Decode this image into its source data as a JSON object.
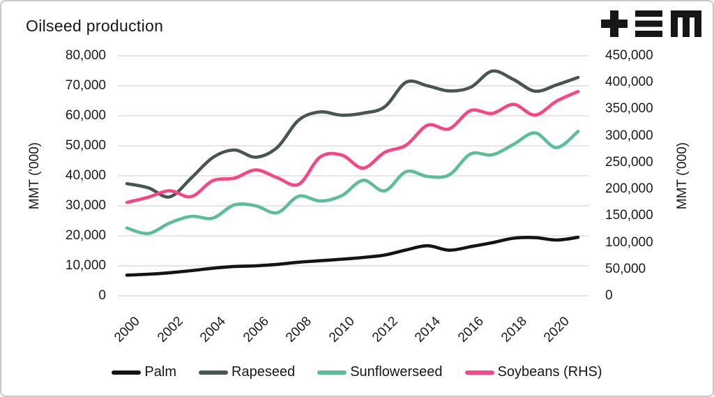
{
  "header": {
    "title": "Oilseed production"
  },
  "logo": {
    "label": "+≡M monogram",
    "color": "#161616"
  },
  "colors": {
    "text": "#1a1a1a",
    "gridline": "#d8d8d8",
    "border": "#c9c9c9",
    "palm": "#141414",
    "rapeseed": "#485551",
    "sunflowerseed": "#5abf99",
    "soybeans": "#f74585"
  },
  "chart_data": {
    "type": "line",
    "title": "Oilseed production",
    "grid": "horizontal",
    "legend_position": "bottom",
    "x": [
      2000,
      2001,
      2002,
      2003,
      2004,
      2005,
      2006,
      2007,
      2008,
      2009,
      2010,
      2011,
      2012,
      2013,
      2014,
      2015,
      2016,
      2017,
      2018,
      2019,
      2020,
      2021
    ],
    "x_tick_years": [
      2000,
      2002,
      2004,
      2006,
      2008,
      2010,
      2012,
      2014,
      2016,
      2018,
      2020
    ],
    "x_tick_labels": [
      "2000",
      "2002",
      "2004",
      "2006",
      "2008",
      "2010",
      "2012",
      "2014",
      "2016",
      "2018",
      "2020"
    ],
    "axes": {
      "left": {
        "label": "MMT ('000)",
        "lim": [
          0,
          80000
        ],
        "ticks": [
          "80,000",
          "70,000",
          "60,000",
          "50,000",
          "40,000",
          "30,000",
          "20,000",
          "10,000",
          "0"
        ]
      },
      "right": {
        "label": "MMT ('000)",
        "lim": [
          0,
          450000
        ],
        "ticks": [
          "450,000",
          "400,000",
          "350,000",
          "300,000",
          "250,000",
          "200,000",
          "150,000",
          "100,000",
          "50,000",
          "0"
        ]
      }
    },
    "series": [
      {
        "name": "Palm",
        "axis": "left",
        "color": "#141414",
        "values": [
          6900,
          7200,
          7700,
          8400,
          9200,
          9800,
          10000,
          10500,
          11200,
          11700,
          12200,
          12800,
          13600,
          15300,
          16700,
          15200,
          16400,
          17700,
          19200,
          19400,
          18600,
          19500
        ]
      },
      {
        "name": "Rapeseed",
        "axis": "left",
        "color": "#485551",
        "values": [
          37400,
          36000,
          33000,
          39300,
          46100,
          48600,
          46200,
          49500,
          58600,
          61300,
          60200,
          60900,
          63000,
          71200,
          70000,
          68300,
          69500,
          74900,
          72100,
          68200,
          70300,
          72800
        ]
      },
      {
        "name": "Sunflowerseed",
        "axis": "left",
        "color": "#5abf99",
        "values": [
          22600,
          20800,
          24300,
          26500,
          25900,
          30300,
          30000,
          27700,
          33200,
          31600,
          33400,
          38500,
          35000,
          41400,
          39800,
          40300,
          47300,
          47000,
          50500,
          54300,
          49400,
          54800
        ]
      },
      {
        "name": "Soybeans (RHS)",
        "axis": "right",
        "color": "#f74585",
        "values": [
          175000,
          185000,
          197000,
          186000,
          216000,
          220500,
          236000,
          221500,
          209000,
          260500,
          264000,
          239500,
          269000,
          282500,
          320000,
          313000,
          347500,
          342000,
          359000,
          339000,
          365000,
          383000
        ]
      }
    ]
  }
}
